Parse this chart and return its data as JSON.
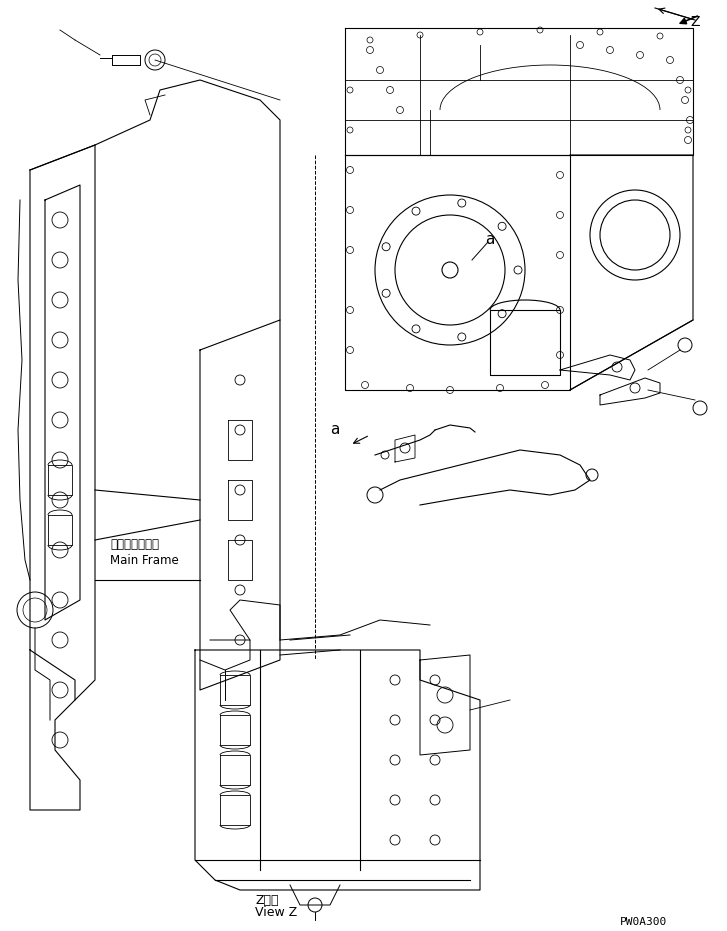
{
  "title": "",
  "bg_color": "#ffffff",
  "line_color": "#000000",
  "fig_width": 7.27,
  "fig_height": 9.31,
  "dpi": 100,
  "label_a": "a",
  "label_z": "Z",
  "label_main_frame_jp": "メインフレーム",
  "label_main_frame_en": "Main Frame",
  "label_view_z_jp": "Z　視",
  "label_view_z_en": "View Z",
  "label_part_number": "PW0A300",
  "text_color": "#000000"
}
